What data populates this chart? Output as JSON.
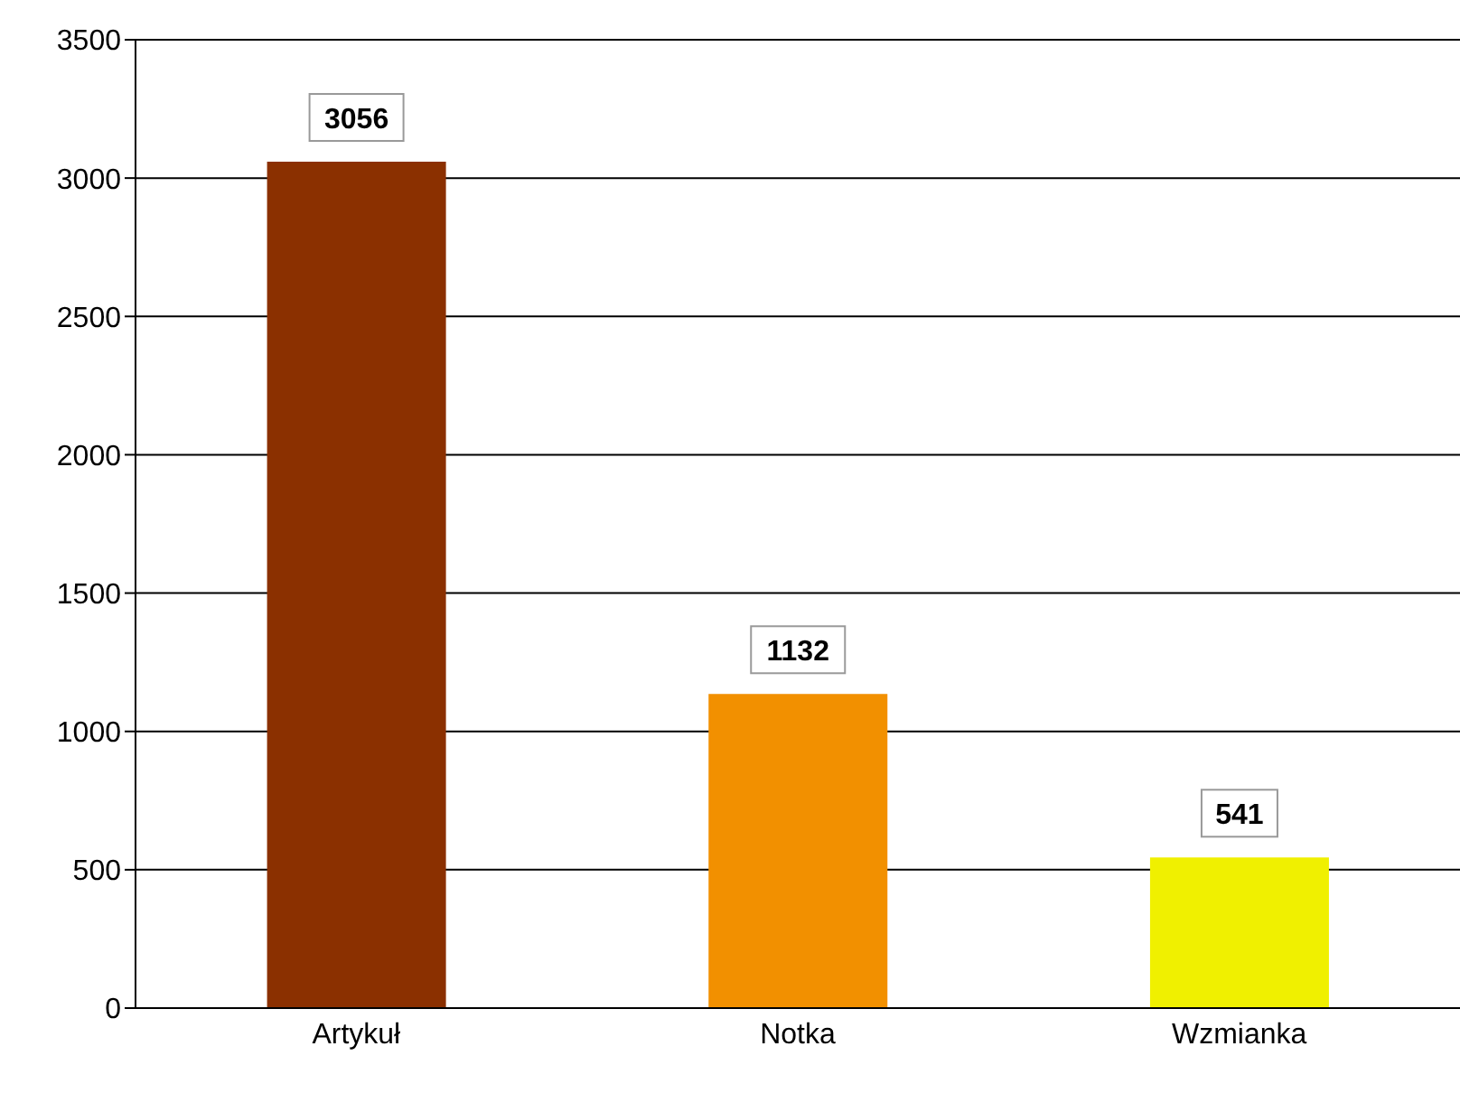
{
  "chart_data": {
    "type": "bar",
    "categories": [
      "Artykuł",
      "Notka",
      "Wzmianka"
    ],
    "values": [
      3056,
      1132,
      541
    ],
    "colors": [
      "#8b3000",
      "#f29000",
      "#f0f000"
    ],
    "ylim": [
      0,
      3500
    ],
    "yticks": [
      0,
      500,
      1000,
      1500,
      2000,
      2500,
      3000,
      3500
    ],
    "grid": "y",
    "data_labels": true
  }
}
